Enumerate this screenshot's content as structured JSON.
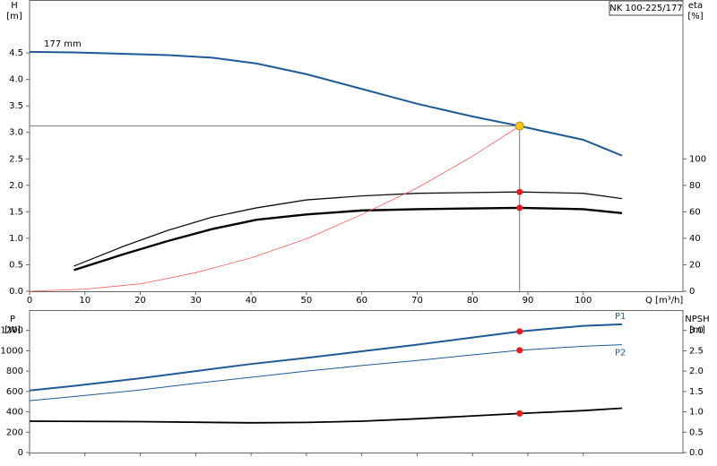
{
  "chart_data": [
    {
      "type": "line",
      "title": "NK 100-225/177",
      "y_label": "H",
      "y_unit": "[m]",
      "y2_label": "eta",
      "y2_unit": "[%]",
      "x_label": "Q [m³/h]",
      "xlim": [
        0,
        118
      ],
      "ylim": [
        0,
        5.5
      ],
      "y2lim": [
        0,
        220
      ],
      "xticks": [
        0,
        10,
        20,
        30,
        40,
        50,
        60,
        70,
        80,
        90,
        100
      ],
      "yticks": [
        {
          "value": 0,
          "label": "0.0"
        },
        {
          "value": 0.5,
          "label": "0.5"
        },
        {
          "value": 1,
          "label": "1.0"
        },
        {
          "value": 1.5,
          "label": "1.5"
        },
        {
          "value": 2,
          "label": "2.0"
        },
        {
          "value": 2.5,
          "label": "2.5"
        },
        {
          "value": 3,
          "label": "3.0"
        },
        {
          "value": 3.5,
          "label": "3.5"
        },
        {
          "value": 4,
          "label": "4.0"
        },
        {
          "value": 4.5,
          "label": "4.5"
        }
      ],
      "y2ticks": [
        0,
        20,
        40,
        60,
        80,
        100
      ],
      "duty_point": {
        "x": 88.5,
        "y": 3.12,
        "color": "#f5c518"
      },
      "series": [
        {
          "name": "177 mm",
          "color": "#1f5a96",
          "x": [
            0,
            8,
            25,
            33,
            41,
            50,
            60,
            70,
            80,
            88.5,
            100,
            107
          ],
          "values": [
            4.52,
            4.51,
            4.46,
            4.41,
            4.3,
            4.1,
            3.82,
            3.54,
            3.3,
            3.12,
            2.86,
            2.56
          ]
        },
        {
          "color": "#111111",
          "axis": "y2",
          "duty_dot": true,
          "x": [
            8,
            17,
            25,
            33,
            41,
            50,
            60,
            70,
            88.5,
            100,
            107
          ],
          "values": [
            19,
            34,
            46,
            56,
            63,
            69,
            72,
            74,
            75,
            74,
            70
          ]
        },
        {
          "color": "#000000",
          "axis": "y2",
          "duty_dot": true,
          "x": [
            8,
            17,
            25,
            33,
            41,
            50,
            60,
            70,
            88.5,
            100,
            107
          ],
          "values": [
            16,
            28,
            38,
            47,
            54,
            58,
            61,
            62,
            63,
            62,
            59
          ]
        },
        {
          "color": "#ff5a5a",
          "x": [
            0,
            10,
            20,
            30,
            40,
            50,
            60,
            70,
            80,
            88.5
          ],
          "values": [
            0,
            0.04,
            0.14,
            0.35,
            0.63,
            0.99,
            1.45,
            1.95,
            2.55,
            3.12
          ]
        }
      ]
    },
    {
      "type": "line",
      "y_label": "P",
      "y_unit": "[W]",
      "y2_label": "NPSH",
      "y2_unit": "[m]",
      "xlim": [
        0,
        118
      ],
      "ylim": [
        0,
        1400
      ],
      "y2lim": [
        0,
        3.5
      ],
      "duty_x": 88.5,
      "xticks": [
        0,
        10,
        20,
        30,
        40,
        50,
        60,
        70,
        80,
        90,
        100
      ],
      "yticks": [
        0,
        200,
        400,
        600,
        800,
        1000,
        1200
      ],
      "y2ticks": [
        {
          "value": 0,
          "label": "0.0"
        },
        {
          "value": 0.5,
          "label": "0.5"
        },
        {
          "value": 1,
          "label": "1.0"
        },
        {
          "value": 1.5,
          "label": "1.5"
        },
        {
          "value": 2,
          "label": "2.0"
        },
        {
          "value": 2.5,
          "label": "2.5"
        },
        {
          "value": 3,
          "label": "3.0"
        }
      ],
      "series": [
        {
          "name": "P1",
          "color": "#1f5a96",
          "duty_dot": true,
          "x": [
            0,
            8,
            20,
            30,
            40,
            50,
            60,
            70,
            80,
            88.5,
            100,
            107
          ],
          "values": [
            610,
            655,
            730,
            800,
            870,
            930,
            995,
            1060,
            1130,
            1190,
            1245,
            1260
          ]
        },
        {
          "name": "P2",
          "color": "#1f5a96",
          "duty_dot": true,
          "x": [
            0,
            8,
            20,
            30,
            40,
            50,
            60,
            70,
            80,
            88.5,
            100,
            107
          ],
          "values": [
            510,
            550,
            615,
            680,
            740,
            800,
            855,
            905,
            960,
            1005,
            1045,
            1060
          ]
        },
        {
          "color": "#000000",
          "axis": "y2",
          "duty_dot": true,
          "x": [
            0,
            20,
            40,
            50,
            60,
            70,
            80,
            88.5,
            100,
            107
          ],
          "values": [
            0.77,
            0.76,
            0.73,
            0.74,
            0.77,
            0.83,
            0.9,
            0.96,
            1.03,
            1.09
          ]
        }
      ]
    }
  ]
}
